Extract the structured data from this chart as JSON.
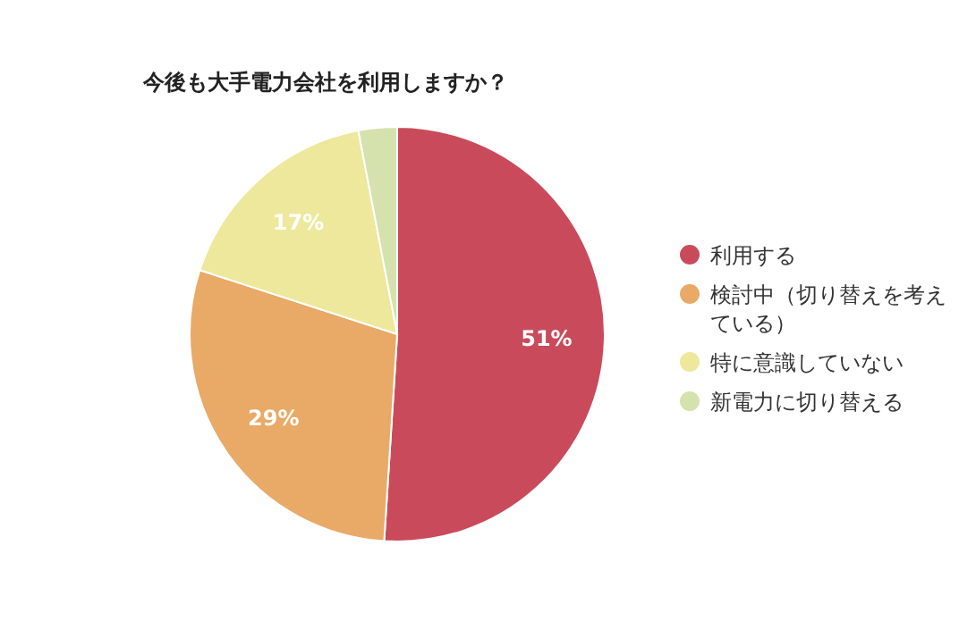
{
  "chart_data": {
    "type": "pie",
    "title": "今後も大手電力会社を利用しますか？",
    "categories": [
      "利用する",
      "検討中（切り替えを考えている）",
      "特に意識していない",
      "新電力に切り替える"
    ],
    "values": [
      51,
      29,
      17,
      3
    ],
    "colors": [
      "#c94b5b",
      "#e8aa66",
      "#ede89c",
      "#d5e2ad"
    ],
    "value_labels": [
      "51%",
      "29%",
      "17%",
      null
    ],
    "legend": "right"
  }
}
